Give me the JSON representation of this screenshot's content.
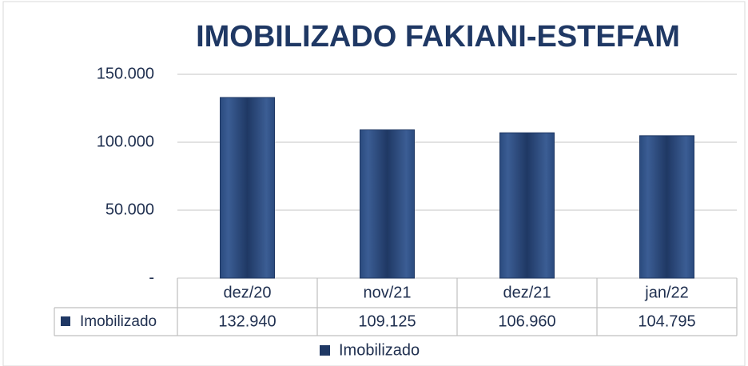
{
  "chart_data": {
    "type": "bar",
    "title": "IMOBILIZADO FAKIANI-ESTEFAM",
    "categories": [
      "dez/20",
      "nov/21",
      "dez/21",
      "jan/22"
    ],
    "series": [
      {
        "name": "Imobilizado",
        "color": "#1f3864",
        "values": [
          132940,
          109125,
          106960,
          104795
        ],
        "value_labels": [
          "132.940",
          "109.125",
          "106.960",
          "104.795"
        ]
      }
    ],
    "ylim": [
      0,
      150000
    ],
    "yticks": [
      {
        "value": 0,
        "label": "-"
      },
      {
        "value": 50000,
        "label": "50.000"
      },
      {
        "value": 100000,
        "label": "100.000"
      },
      {
        "value": 150000,
        "label": "150.000"
      }
    ],
    "grid": true,
    "legend": "bottom"
  }
}
